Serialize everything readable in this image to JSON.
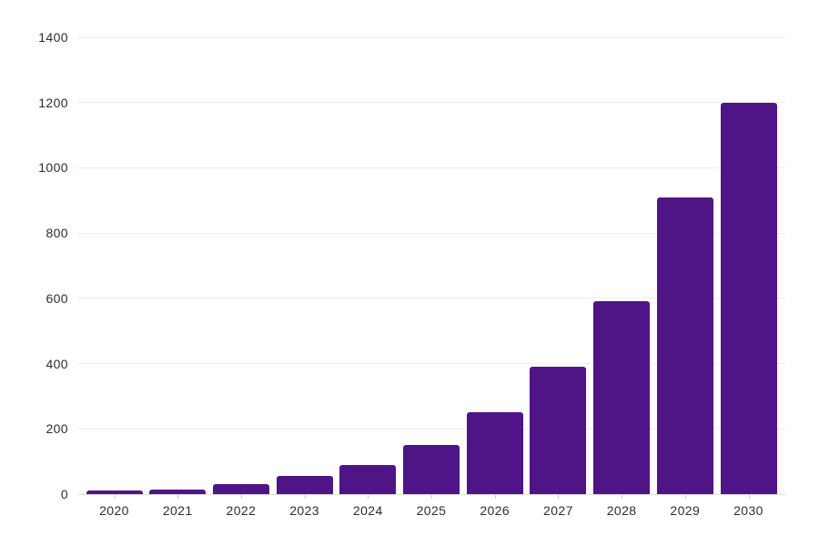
{
  "chart": {
    "background_color": "#ffffff",
    "bar_color": "#4f1486",
    "gridline_color": "#ededed",
    "axis_line_color": "#e0e0e0",
    "tick_mark_color": "#cccccc",
    "label_color": "#2e2e2e"
  },
  "chart_data": {
    "type": "bar",
    "title": "",
    "xlabel": "",
    "ylabel": "",
    "categories": [
      "2020",
      "2021",
      "2022",
      "2023",
      "2024",
      "2025",
      "2026",
      "2027",
      "2028",
      "2029",
      "2030"
    ],
    "values": [
      10,
      15,
      30,
      55,
      90,
      150,
      250,
      390,
      590,
      910,
      1200
    ],
    "series_color": "#4f1486",
    "ylim": [
      0,
      1400
    ],
    "yticks": [
      0,
      200,
      400,
      600,
      800,
      1000,
      1200,
      1400
    ],
    "ytick_labels": [
      "0",
      "200",
      "400",
      "600",
      "800",
      "1000",
      "1200",
      "1400"
    ],
    "grid": true,
    "grid_axis": "y",
    "legend_position": "none",
    "bar_corner_radius": 3
  }
}
